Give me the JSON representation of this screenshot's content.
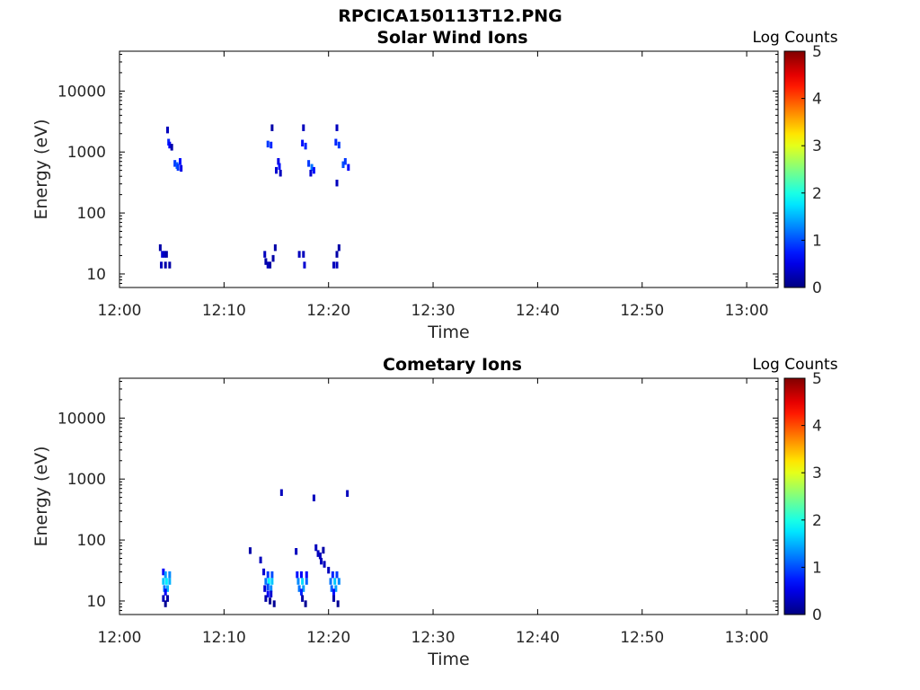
{
  "figure_title": "RPCICA150113T12.PNG",
  "chart_data": [
    {
      "type": "heatmap",
      "title": "Solar Wind Ions",
      "xlabel": "Time",
      "ylabel": "Energy (eV)",
      "x_tick_labels": [
        "12:00",
        "12:10",
        "12:20",
        "12:30",
        "12:40",
        "12:50",
        "13:00"
      ],
      "x_range": [
        "12:00",
        "13:03"
      ],
      "y_scale": "log",
      "y_tick_labels": [
        "10",
        "100",
        "1000",
        "10000"
      ],
      "y_range": [
        6,
        45000
      ],
      "colorbar": {
        "label": "Log Counts",
        "range": [
          0,
          5
        ],
        "tick_labels": [
          "0",
          "1",
          "2",
          "3",
          "4",
          "5"
        ],
        "colormap": "jet"
      },
      "cells": [
        [
          4.6,
          2300,
          0.3
        ],
        [
          4.7,
          1450,
          0.8
        ],
        [
          4.8,
          1300,
          0.6
        ],
        [
          5.0,
          1200,
          0.2
        ],
        [
          5.3,
          650,
          0.9
        ],
        [
          5.5,
          600,
          1.1
        ],
        [
          5.6,
          560,
          0.9
        ],
        [
          5.8,
          700,
          0.7
        ],
        [
          5.9,
          540,
          0.5
        ],
        [
          3.9,
          27,
          0.2
        ],
        [
          4.1,
          21,
          0.4
        ],
        [
          4.3,
          21,
          0.3
        ],
        [
          4.5,
          21,
          0.2
        ],
        [
          4.0,
          14,
          0.3
        ],
        [
          4.4,
          14,
          0.2
        ],
        [
          4.8,
          14,
          0.2
        ],
        [
          14.6,
          2500,
          0.2
        ],
        [
          14.2,
          1350,
          0.9
        ],
        [
          14.5,
          1300,
          0.8
        ],
        [
          15.2,
          700,
          0.5
        ],
        [
          15.3,
          580,
          0.7
        ],
        [
          15.0,
          500,
          0.4
        ],
        [
          15.4,
          450,
          0.3
        ],
        [
          14.9,
          27,
          0.2
        ],
        [
          13.9,
          21,
          0.3
        ],
        [
          14.2,
          14,
          0.3
        ],
        [
          14.4,
          14,
          0.2
        ],
        [
          14.7,
          18,
          0.2
        ],
        [
          14.0,
          16,
          0.2
        ],
        [
          17.6,
          2500,
          0.3
        ],
        [
          17.5,
          1400,
          0.7
        ],
        [
          17.8,
          1250,
          0.8
        ],
        [
          18.1,
          650,
          0.9
        ],
        [
          18.4,
          560,
          1.2
        ],
        [
          18.6,
          500,
          0.7
        ],
        [
          18.3,
          450,
          0.4
        ],
        [
          17.2,
          21,
          0.3
        ],
        [
          17.6,
          21,
          0.3
        ],
        [
          17.7,
          14,
          0.4
        ],
        [
          20.8,
          2500,
          0.3
        ],
        [
          20.7,
          1450,
          0.8
        ],
        [
          21.0,
          1300,
          0.9
        ],
        [
          21.4,
          620,
          1.0
        ],
        [
          21.6,
          700,
          0.9
        ],
        [
          21.9,
          560,
          0.6
        ],
        [
          20.8,
          310,
          0.3
        ],
        [
          21.0,
          27,
          0.2
        ],
        [
          20.8,
          21,
          0.2
        ],
        [
          20.5,
          14,
          0.3
        ],
        [
          20.8,
          14,
          0.3
        ]
      ]
    },
    {
      "type": "heatmap",
      "title": "Cometary Ions",
      "xlabel": "Time",
      "ylabel": "Energy (eV)",
      "x_tick_labels": [
        "12:00",
        "12:10",
        "12:20",
        "12:30",
        "12:40",
        "12:50",
        "13:00"
      ],
      "x_range": [
        "12:00",
        "13:03"
      ],
      "y_scale": "log",
      "y_tick_labels": [
        "10",
        "100",
        "1000",
        "10000"
      ],
      "y_range": [
        6,
        45000
      ],
      "colorbar": {
        "label": "Log Counts",
        "range": [
          0,
          5
        ],
        "tick_labels": [
          "0",
          "1",
          "2",
          "3",
          "4",
          "5"
        ],
        "colormap": "jet"
      },
      "cells": [
        [
          15.5,
          600,
          0.3
        ],
        [
          18.6,
          490,
          0.3
        ],
        [
          21.8,
          580,
          0.3
        ],
        [
          12.5,
          67,
          0.2
        ],
        [
          13.5,
          47,
          0.3
        ],
        [
          16.9,
          65,
          0.3
        ],
        [
          18.8,
          75,
          0.3
        ],
        [
          19.0,
          60,
          0.3
        ],
        [
          19.2,
          55,
          0.3
        ],
        [
          19.5,
          68,
          0.2
        ],
        [
          19.3,
          45,
          0.3
        ],
        [
          19.6,
          40,
          0.3
        ],
        [
          4.2,
          30,
          0.6
        ],
        [
          4.4,
          27,
          1.4
        ],
        [
          4.8,
          27,
          1.3
        ],
        [
          4.2,
          21,
          1.6
        ],
        [
          4.5,
          21,
          1.8
        ],
        [
          4.8,
          21,
          1.5
        ],
        [
          4.3,
          16,
          1.2
        ],
        [
          4.6,
          16,
          1.5
        ],
        [
          4.4,
          14,
          0.6
        ],
        [
          4.2,
          11,
          0.3
        ],
        [
          4.6,
          11,
          0.2
        ],
        [
          4.4,
          9,
          0.1
        ],
        [
          13.8,
          30,
          0.4
        ],
        [
          14.2,
          27,
          0.9
        ],
        [
          14.6,
          27,
          1.0
        ],
        [
          14.0,
          21,
          1.2
        ],
        [
          14.3,
          21,
          1.9
        ],
        [
          14.6,
          21,
          1.6
        ],
        [
          14.2,
          17,
          1.0
        ],
        [
          14.5,
          16,
          1.3
        ],
        [
          13.9,
          16,
          0.4
        ],
        [
          14.2,
          13,
          0.6
        ],
        [
          14.5,
          13,
          0.4
        ],
        [
          14.0,
          11,
          0.2
        ],
        [
          14.4,
          10,
          0.1
        ],
        [
          14.8,
          9,
          0.1
        ],
        [
          17.0,
          27,
          0.7
        ],
        [
          17.4,
          27,
          0.6
        ],
        [
          17.9,
          27,
          0.6
        ],
        [
          17.1,
          21,
          1.3
        ],
        [
          17.5,
          21,
          1.7
        ],
        [
          17.9,
          21,
          1.1
        ],
        [
          17.2,
          16,
          1.2
        ],
        [
          17.6,
          16,
          1.4
        ],
        [
          17.4,
          14,
          0.8
        ],
        [
          17.5,
          11,
          0.2
        ],
        [
          17.8,
          9,
          0.1
        ],
        [
          20.0,
          32,
          0.3
        ],
        [
          20.4,
          27,
          0.8
        ],
        [
          20.8,
          27,
          0.9
        ],
        [
          20.2,
          21,
          1.2
        ],
        [
          20.6,
          21,
          1.6
        ],
        [
          21.0,
          21,
          1.3
        ],
        [
          20.3,
          16,
          1.1
        ],
        [
          20.7,
          16,
          1.4
        ],
        [
          20.5,
          14,
          0.7
        ],
        [
          20.5,
          11,
          0.2
        ],
        [
          20.9,
          9,
          0.1
        ]
      ]
    }
  ]
}
